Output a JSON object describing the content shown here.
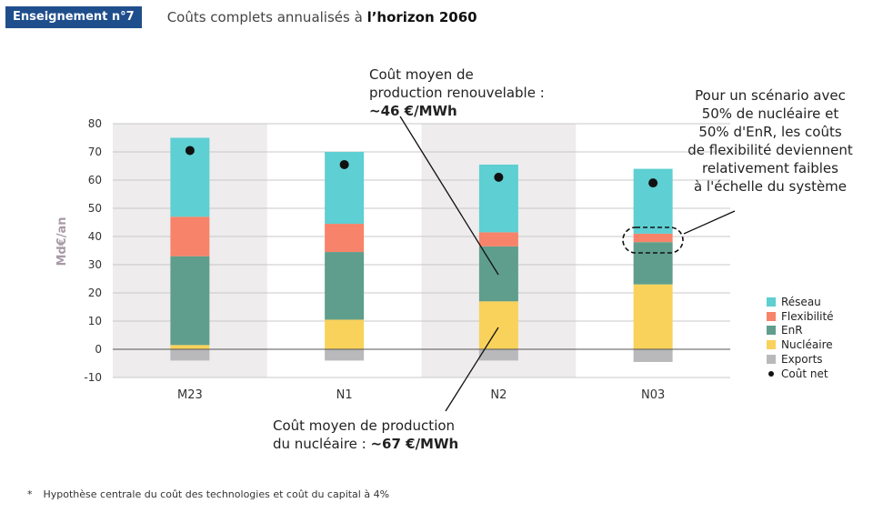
{
  "header": {
    "badge": "Enseignement n°7",
    "title_prefix": "Coûts complets annualisés à ",
    "title_bold": "l’horizon 2060"
  },
  "footnote": {
    "star": "*",
    "text": "Hypothèse centrale du coût des technologies et coût du capital à 4%"
  },
  "annotations": {
    "renewable_line1": "Coût moyen de",
    "renewable_line2": "production renouvelable :",
    "renewable_value": "~46 €/MWh",
    "nuclear_line1": "Coût moyen de production",
    "nuclear_prefix": "du nucléaire : ",
    "nuclear_value": "~67 €/MWh",
    "flex_lines": [
      "Pour un scénario avec",
      "50% de nucléaire et",
      "50% d'EnR, les coûts",
      "de flexibilité deviennent",
      "relativement faibles",
      "à l'échelle du système"
    ]
  },
  "colors": {
    "reseau": "#5ecfd2",
    "flexibilite": "#f7836a",
    "enr": "#5f9e8c",
    "nucleaire": "#f9d25b",
    "exports": "#b9b9bc",
    "cout_net": "#111111",
    "shade": "#eeeced",
    "grid": "#c8c8c8",
    "axis_label": "#a89aa6",
    "badge": "#1f4e8c"
  },
  "chart_data": {
    "type": "bar",
    "stacked": true,
    "categories": [
      "M23",
      "N1",
      "N2",
      "N03"
    ],
    "ylabel": "Md€/an",
    "ylim": [
      -10,
      80
    ],
    "yticks": [
      -10,
      0,
      10,
      20,
      30,
      40,
      50,
      60,
      70,
      80
    ],
    "grid": true,
    "legend_position": "right",
    "series": [
      {
        "name": "Réseau",
        "color_key": "reseau",
        "values": [
          28,
          25.5,
          24,
          23
        ]
      },
      {
        "name": "Flexibilité",
        "color_key": "flexibilite",
        "values": [
          14,
          10,
          5,
          3
        ]
      },
      {
        "name": "EnR",
        "color_key": "enr",
        "values": [
          31.5,
          24,
          19.5,
          15
        ]
      },
      {
        "name": "Nucléaire",
        "color_key": "nucleaire",
        "values": [
          1.5,
          10.5,
          17,
          23
        ]
      },
      {
        "name": "Exports",
        "color_key": "exports",
        "values": [
          -4,
          -4,
          -4,
          -4.5
        ]
      }
    ],
    "net_cost": {
      "name": "Coût net",
      "values": [
        70.5,
        65.5,
        61,
        59
      ]
    }
  }
}
